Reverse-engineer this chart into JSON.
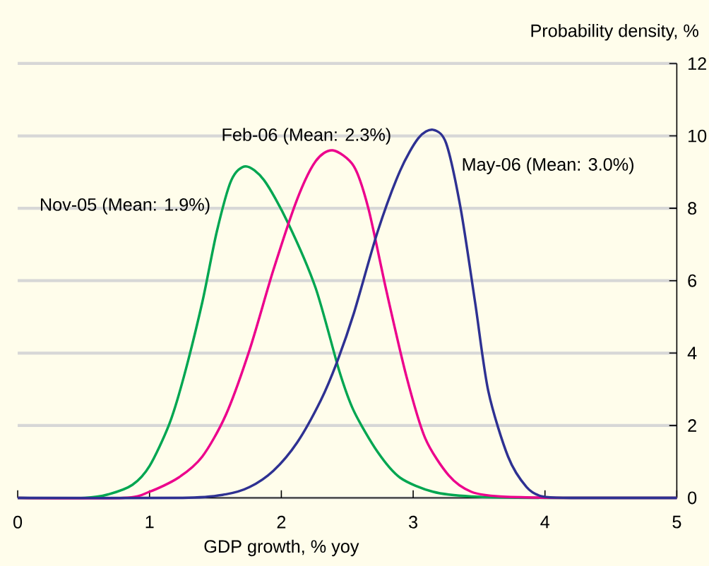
{
  "chart_data": {
    "type": "line",
    "xlabel": "GDP growth, % yoy",
    "ylabel": "Probability density, %",
    "xlim": [
      0,
      5
    ],
    "ylim": [
      0,
      12
    ],
    "xticks": [
      0,
      1,
      2,
      3,
      4,
      5
    ],
    "yticks": [
      0,
      2,
      4,
      6,
      8,
      10,
      12
    ],
    "grid": "y",
    "legend": false,
    "marker": "none",
    "line_style": "solid",
    "series": [
      {
        "name": "Nov-05 (Mean: 1.9%)",
        "color": "#00a651",
        "x": [
          0,
          0.51,
          0.69,
          0.87,
          1.0,
          1.15,
          1.26,
          1.4,
          1.51,
          1.62,
          1.73,
          1.87,
          2.05,
          2.26,
          2.44,
          2.55,
          2.73,
          2.9,
          3.15,
          3.44,
          4.0,
          5
        ],
        "values": [
          0,
          0,
          0.1,
          0.36,
          0.88,
          2.04,
          3.34,
          5.4,
          7.35,
          8.77,
          9.16,
          8.77,
          7.6,
          5.8,
          3.5,
          2.4,
          1.27,
          0.56,
          0.17,
          0.04,
          0,
          0
        ]
      },
      {
        "name": "Feb-06 (Mean: 2.3%)",
        "color": "#ec008c",
        "x": [
          0,
          0.8,
          1.0,
          1.22,
          1.4,
          1.58,
          1.76,
          1.94,
          2.12,
          2.26,
          2.39,
          2.55,
          2.66,
          2.8,
          2.95,
          3.09,
          3.27,
          3.44,
          3.66,
          4.2,
          5
        ],
        "values": [
          0,
          0,
          0.17,
          0.56,
          1.14,
          2.3,
          4.1,
          6.3,
          8.25,
          9.3,
          9.6,
          9.16,
          8.0,
          5.67,
          3.34,
          1.66,
          0.62,
          0.17,
          0.04,
          0,
          0
        ]
      },
      {
        "name": "May-06 (Mean: 3.0%)",
        "color": "#2e3192",
        "x": [
          0,
          1.25,
          1.58,
          1.76,
          1.94,
          2.12,
          2.3,
          2.42,
          2.55,
          2.73,
          2.9,
          3.04,
          3.15,
          3.25,
          3.36,
          3.47,
          3.57,
          3.72,
          3.86,
          3.98,
          4.2,
          5
        ],
        "values": [
          0,
          0,
          0.1,
          0.3,
          0.75,
          1.53,
          2.7,
          3.73,
          5.1,
          7.35,
          9.03,
          9.94,
          10.17,
          9.8,
          8.0,
          5.4,
          2.95,
          1.14,
          0.3,
          0.04,
          0,
          0
        ]
      }
    ]
  }
}
